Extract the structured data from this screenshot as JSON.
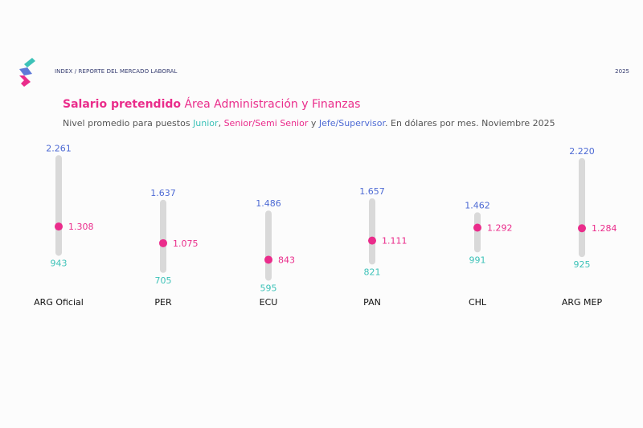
{
  "header": {
    "breadcrumb": "INDEX / REPORTE DEL MERCADO LABORAL",
    "year": "2025"
  },
  "title": {
    "bold": "Salario pretendido",
    "rest": "Área Administración y Finanzas"
  },
  "subtitle": {
    "prefix": "Nivel promedio para puestos ",
    "junior": "Junior",
    "sep1": ", ",
    "senior": "Senior/Semi Senior",
    "sep2": " y ",
    "jefe": "Jefe/Supervisor",
    "suffix": ". En dólares por mes. Noviembre 2025"
  },
  "colors": {
    "junior": "#3dc2b8",
    "senior": "#ea2c8b",
    "jefe": "#4d6ad4",
    "track": "#d9d9d9"
  },
  "chart_data": {
    "type": "range",
    "categories": [
      "ARG Oficial",
      "PER",
      "ECU",
      "PAN",
      "CHL",
      "ARG MEP"
    ],
    "series": [
      {
        "name": "Jefe/Supervisor",
        "values": [
          2261,
          1637,
          1486,
          1657,
          1462,
          2220
        ],
        "labels": [
          "2.261",
          "1.637",
          "1.486",
          "1.657",
          "1.462",
          "2.220"
        ]
      },
      {
        "name": "Senior/Semi Senior",
        "values": [
          1308,
          1075,
          843,
          1111,
          1292,
          1284
        ],
        "labels": [
          "1.308",
          "1.075",
          "843",
          "1.111",
          "1.292",
          "1.284"
        ]
      },
      {
        "name": "Junior",
        "values": [
          943,
          705,
          595,
          821,
          991,
          925
        ],
        "labels": [
          "943",
          "705",
          "595",
          "821",
          "991",
          "925"
        ]
      }
    ]
  }
}
